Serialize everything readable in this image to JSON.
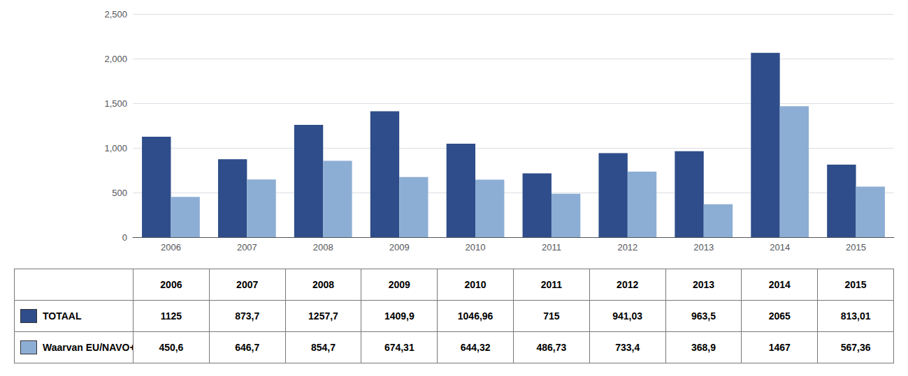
{
  "chart_data": {
    "type": "bar",
    "categories": [
      "2006",
      "2007",
      "2008",
      "2009",
      "2010",
      "2011",
      "2012",
      "2013",
      "2014",
      "2015"
    ],
    "series": [
      {
        "name": "TOTAAL",
        "color": "#2E4D8A",
        "values": [
          1125,
          873.7,
          1257.7,
          1409.9,
          1046.96,
          715,
          941.03,
          963.5,
          2065,
          813.01
        ],
        "value_labels": [
          "1125",
          "873,7",
          "1257,7",
          "1409,9",
          "1046,96",
          "715",
          "941,03",
          "963,5",
          "2065",
          "813,01"
        ]
      },
      {
        "name": "Waarvan EU/NAVO+",
        "color": "#8DAED4",
        "values": [
          450.6,
          646.7,
          854.7,
          674.31,
          644.32,
          486.73,
          733.4,
          368.9,
          1467,
          567.36
        ],
        "value_labels": [
          "450,6",
          "646,7",
          "854,7",
          "674,31",
          "644,32",
          "486,73",
          "733,4",
          "368,9",
          "1467",
          "567,36"
        ]
      }
    ],
    "ylim": [
      0,
      2500
    ],
    "yticks": [
      0,
      500,
      1000,
      1500,
      2000,
      2500
    ],
    "grid": true
  }
}
